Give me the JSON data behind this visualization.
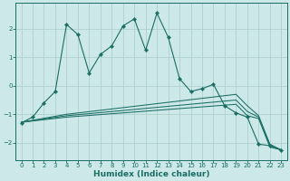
{
  "xlabel": "Humidex (Indice chaleur)",
  "bg_color": "#cce8e8",
  "line_color": "#1a6e64",
  "grid_color": "#aacccc",
  "xlim": [
    -0.5,
    23.5
  ],
  "ylim": [
    -2.6,
    2.9
  ],
  "yticks": [
    -2,
    -1,
    0,
    1,
    2
  ],
  "xticks": [
    0,
    1,
    2,
    3,
    4,
    5,
    6,
    7,
    8,
    9,
    10,
    11,
    12,
    13,
    14,
    15,
    16,
    17,
    18,
    19,
    20,
    21,
    22,
    23
  ],
  "xlabels": [
    "0",
    "1",
    "2",
    "3",
    "4",
    "5",
    "6",
    "7",
    "8",
    "9",
    "10",
    "11",
    "12",
    "13",
    "14",
    "15",
    "16",
    "17",
    "18",
    "19",
    "20",
    "21",
    "22",
    "23"
  ],
  "series1_x": [
    0,
    1,
    2,
    3,
    4,
    5,
    6,
    7,
    8,
    9,
    10,
    11,
    12,
    13,
    14,
    15,
    16,
    17,
    18,
    19,
    20,
    21,
    22,
    23
  ],
  "series1_y": [
    -1.3,
    -1.1,
    -0.6,
    -0.2,
    2.15,
    1.8,
    0.45,
    1.1,
    1.4,
    2.1,
    2.35,
    1.25,
    2.55,
    1.7,
    0.25,
    -0.2,
    -0.1,
    0.05,
    -0.7,
    -0.95,
    -1.1,
    -2.05,
    -2.1,
    -2.25
  ],
  "series2_x": [
    0,
    4,
    19,
    20,
    21,
    22,
    23
  ],
  "series2_y": [
    -1.28,
    -1.0,
    -0.3,
    -0.7,
    -1.05,
    -2.05,
    -2.25
  ],
  "series3_x": [
    0,
    4,
    19,
    20,
    21,
    22,
    23
  ],
  "series3_y": [
    -1.28,
    -1.05,
    -0.5,
    -0.9,
    -1.1,
    -2.1,
    -2.25
  ],
  "series4_x": [
    0,
    4,
    19,
    20,
    21,
    22,
    23
  ],
  "series4_y": [
    -1.28,
    -1.1,
    -0.65,
    -1.05,
    -1.15,
    -2.15,
    -2.25
  ]
}
